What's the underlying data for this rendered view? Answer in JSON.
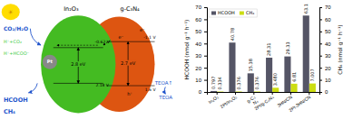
{
  "chart_data": [
    {
      "type": "diagram",
      "colors": [
        "#ffdd00",
        "#dd5511",
        "#44bb22",
        "#888888",
        "#2255cc"
      ],
      "annotations": [
        {
          "text": "☀",
          "color": "#cc8800"
        },
        {
          "text": "In₂O₃",
          "color": "#000000"
        },
        {
          "text": "g-C₃N₄",
          "color": "#000000"
        },
        {
          "text": "Pt",
          "color": "#ffffff"
        },
        {
          "text": "2.8 eV",
          "color": "#000000"
        },
        {
          "text": "2.7 eV",
          "color": "#000000"
        },
        {
          "text": "-0.62 V",
          "color": "#000000"
        },
        {
          "text": "2.18 V",
          "color": "#000000"
        },
        {
          "text": "-1.1 V",
          "color": "#000000"
        },
        {
          "text": "1.6 V",
          "color": "#000000"
        },
        {
          "text": "e⁻",
          "color": "#000000"
        },
        {
          "text": "e⁻",
          "color": "#000000"
        },
        {
          "text": "h⁺",
          "color": "#000000"
        },
        {
          "text": "CO₂/H₂O",
          "color": "#2255cc"
        },
        {
          "text": "H⁺+CO₂",
          "color": "#44cc44"
        },
        {
          "text": "H⁺+HCOO⁻",
          "color": "#44cc44"
        },
        {
          "text": "HCOOH",
          "color": "#2255cc"
        },
        {
          "text": "CH₄",
          "color": "#2255cc"
        },
        {
          "text": "TEOA↑",
          "color": "#2255cc"
        },
        {
          "text": "TEOA",
          "color": "#2255cc"
        }
      ]
    },
    {
      "type": "bar",
      "categories": [
        "In₂O₃",
        "2Pt/In₂O₃",
        "g-C₃\nN₄",
        "2Pt/g-C₃N₄",
        "3HN/CN",
        "2Pt-3HN/CN"
      ],
      "series": [
        {
          "name": "HCOOH",
          "color": "#555566",
          "values": [
            0.797,
            40.78,
            15.38,
            28.31,
            29.33,
            63.1
          ],
          "value_labels": [
            "0.797",
            "40.78",
            "15.38",
            "28.31",
            "29.33",
            "63.1"
          ]
        },
        {
          "name": "CH₄",
          "color": "#ccdd11",
          "axis": "y2",
          "values": [
            0.334,
            0.376,
            0.376,
            3.48,
            6.81,
            7.007
          ],
          "value_labels": [
            "0.334",
            "0.376",
            "0.376",
            "3.480",
            "6.81",
            "7.007"
          ]
        }
      ],
      "y_label": "HCOOH (nmol g⁻¹ h⁻¹)",
      "y2_label": "CH₄ (nmol g⁻¹ h⁻¹)",
      "ylim": [
        0,
        70
      ],
      "yticks": [
        0,
        10,
        20,
        30,
        40,
        50,
        60,
        70
      ],
      "y2lim": [
        0,
        70
      ],
      "y2ticks": [
        0,
        10,
        20,
        30,
        40,
        50,
        60,
        70
      ],
      "data_labels": true,
      "legend": "upper left",
      "grid": false
    }
  ]
}
